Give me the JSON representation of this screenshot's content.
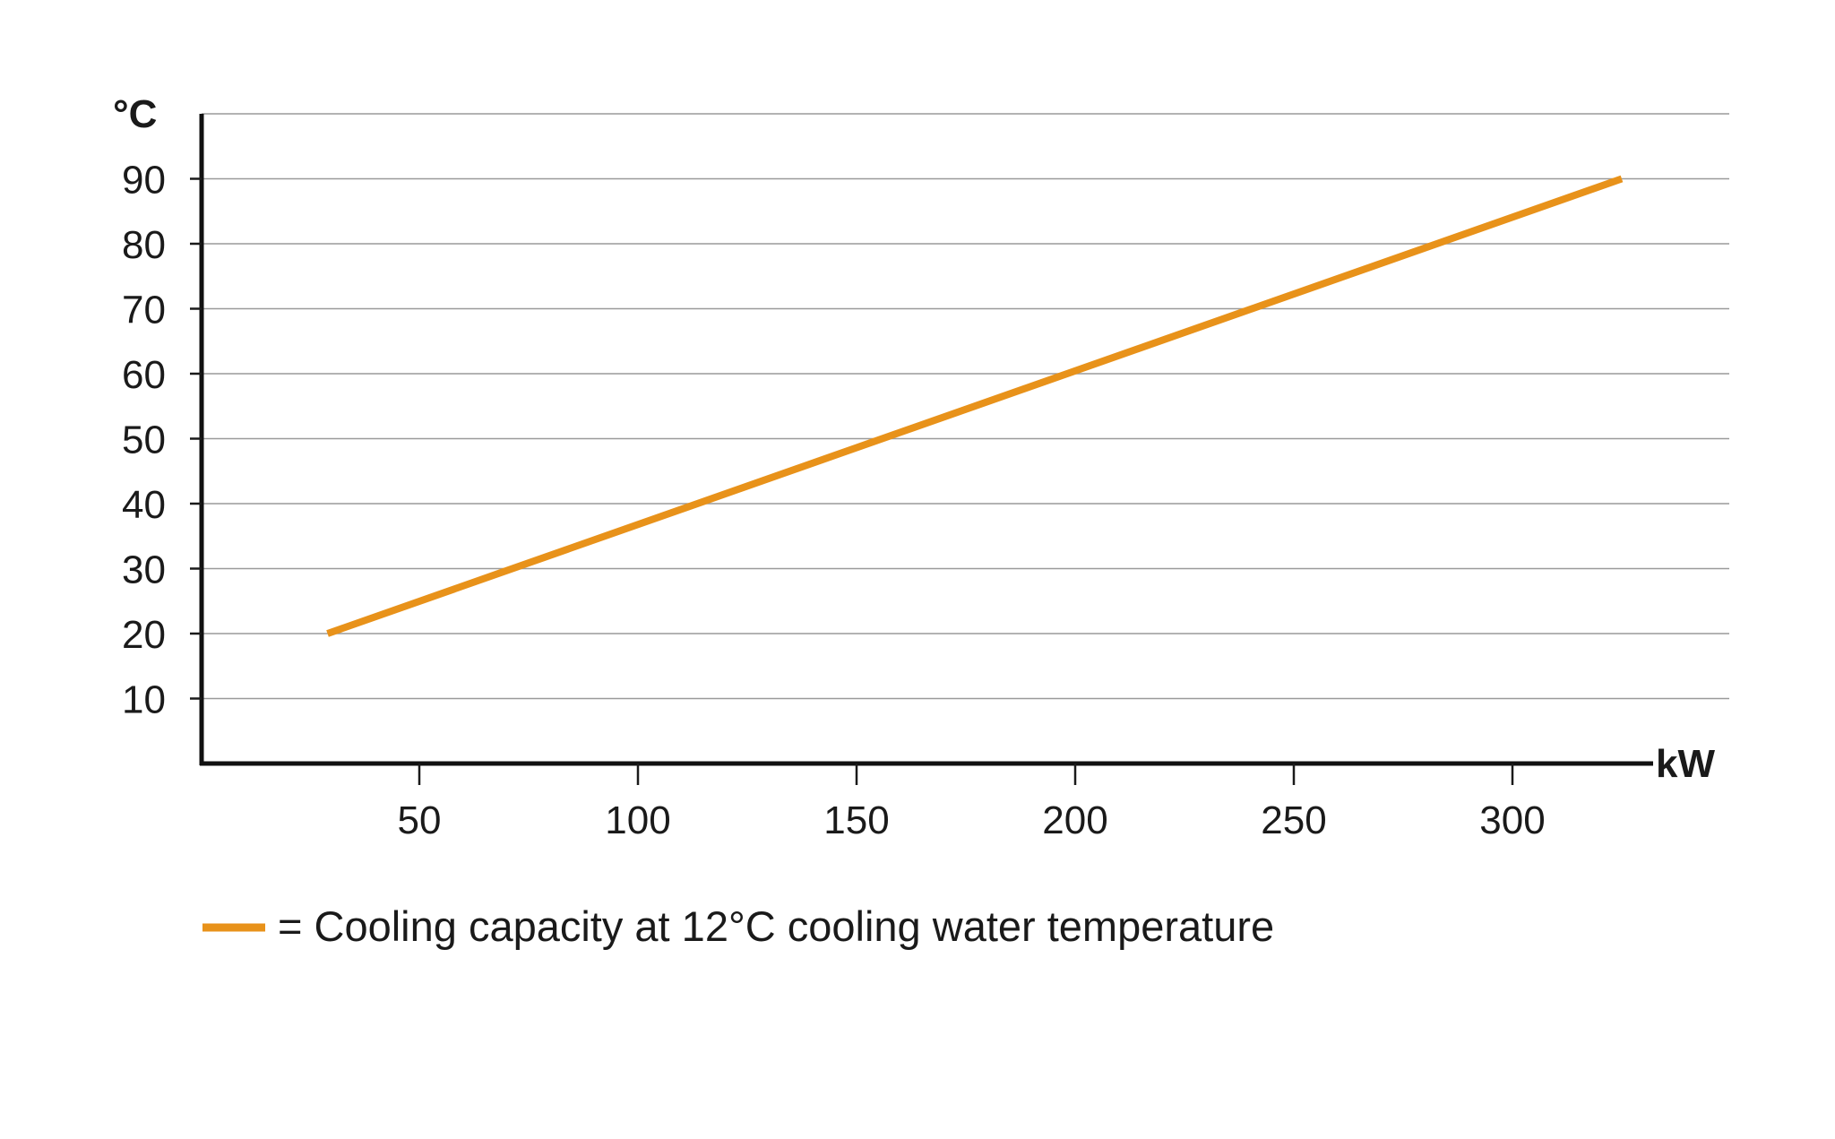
{
  "chart_data": {
    "type": "line",
    "title": "",
    "ylabel": "°C",
    "xlabel": "kW",
    "xlim": [
      0,
      325
    ],
    "ylim": [
      0,
      100
    ],
    "x_ticks": [
      50,
      100,
      150,
      200,
      250,
      300
    ],
    "y_ticks": [
      10,
      20,
      30,
      40,
      50,
      60,
      70,
      80,
      90
    ],
    "grid": true,
    "legend_position": "bottom-left",
    "legend_text": "= Cooling capacity at 12°C cooling water temperature",
    "series": [
      {
        "color": "#E8921A",
        "x": [
          29,
          325
        ],
        "y": [
          20,
          90
        ]
      }
    ]
  }
}
